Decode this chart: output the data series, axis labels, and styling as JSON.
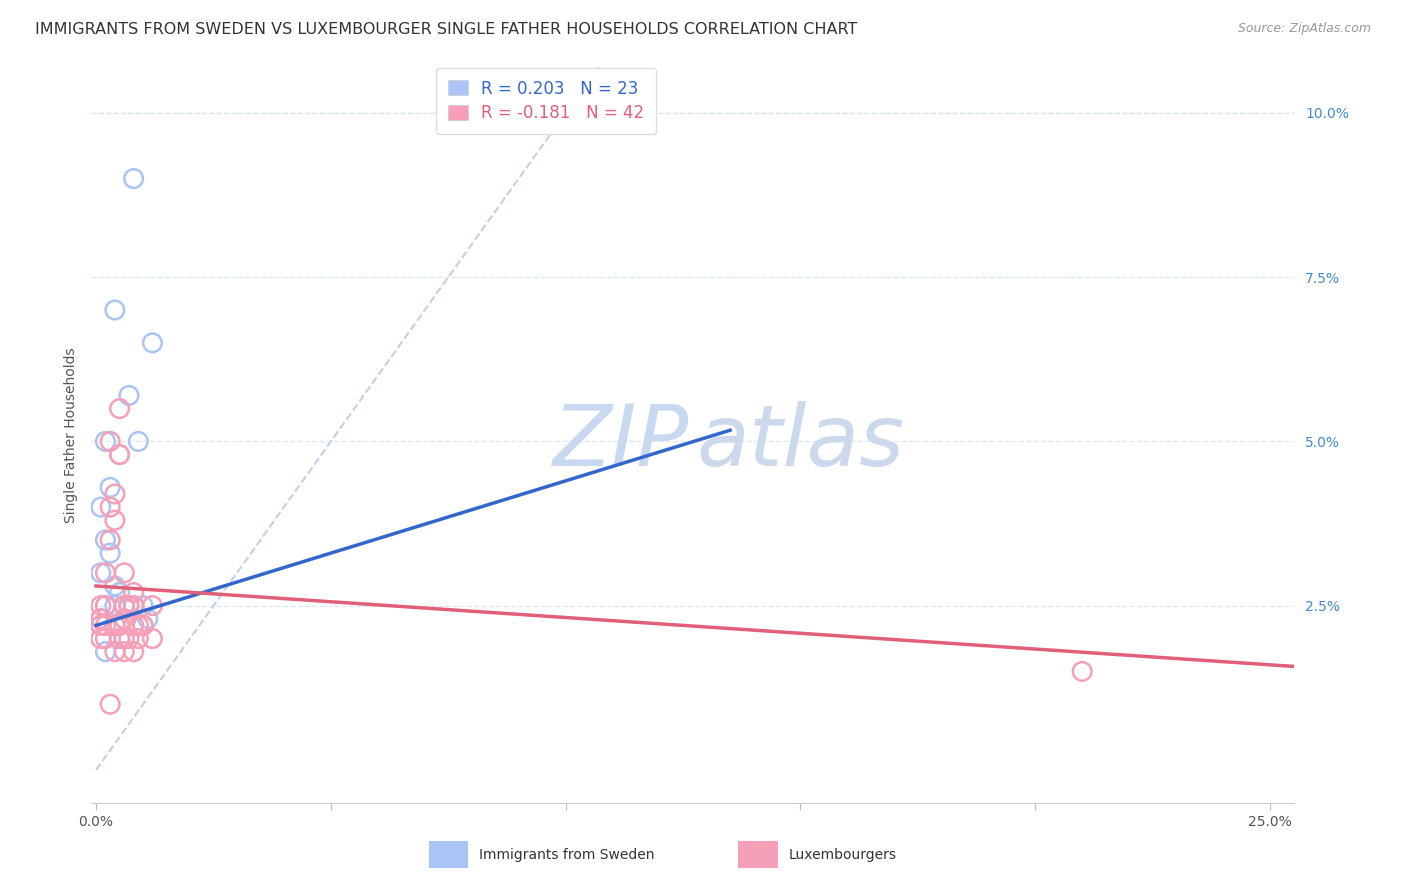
{
  "title": "IMMIGRANTS FROM SWEDEN VS LUXEMBOURGER SINGLE FATHER HOUSEHOLDS CORRELATION CHART",
  "source": "Source: ZipAtlas.com",
  "xlabel_blue": "Immigrants from Sweden",
  "xlabel_pink": "Luxembourgers",
  "ylabel": "Single Father Households",
  "xlim": [
    -0.001,
    0.255
  ],
  "ylim": [
    -0.005,
    0.107
  ],
  "xtick_positions": [
    0.0,
    0.05,
    0.1,
    0.15,
    0.2,
    0.25
  ],
  "xtick_labels": [
    "0.0%",
    "",
    "",
    "",
    "",
    "25.0%"
  ],
  "ytick_right_positions": [
    0.025,
    0.05,
    0.075,
    0.1
  ],
  "ytick_right_labels": [
    "2.5%",
    "5.0%",
    "7.5%",
    "10.0%"
  ],
  "blue_R": 0.203,
  "blue_N": 23,
  "pink_R": -0.181,
  "pink_N": 42,
  "blue_color": "#aac4f5",
  "pink_color": "#f5a0b8",
  "blue_line_color": "#3366cc",
  "pink_line_color": "#e0607a",
  "diag_line_color": "#c0d0e8",
  "grid_color": "#dde8f2",
  "background_color": "#ffffff",
  "blue_scatter_x": [
    0.008,
    0.012,
    0.004,
    0.007,
    0.009,
    0.002,
    0.005,
    0.003,
    0.001,
    0.002,
    0.003,
    0.001,
    0.004,
    0.005,
    0.002,
    0.006,
    0.008,
    0.001,
    0.011,
    0.002,
    0.01,
    0.001,
    0.004
  ],
  "blue_scatter_y": [
    0.09,
    0.065,
    0.07,
    0.057,
    0.05,
    0.05,
    0.048,
    0.043,
    0.04,
    0.035,
    0.033,
    0.03,
    0.028,
    0.027,
    0.025,
    0.025,
    0.025,
    0.023,
    0.023,
    0.018,
    0.025,
    0.022,
    0.025
  ],
  "pink_scatter_x": [
    0.001,
    0.002,
    0.001,
    0.003,
    0.001,
    0.002,
    0.003,
    0.004,
    0.005,
    0.005,
    0.003,
    0.004,
    0.006,
    0.007,
    0.004,
    0.008,
    0.006,
    0.007,
    0.005,
    0.006,
    0.009,
    0.01,
    0.012,
    0.008,
    0.006,
    0.008,
    0.004,
    0.005,
    0.01,
    0.008,
    0.009,
    0.007,
    0.006,
    0.005,
    0.004,
    0.002,
    0.002,
    0.001,
    0.21,
    0.003,
    0.006,
    0.012
  ],
  "pink_scatter_y": [
    0.025,
    0.03,
    0.022,
    0.035,
    0.023,
    0.025,
    0.05,
    0.042,
    0.048,
    0.055,
    0.04,
    0.038,
    0.03,
    0.025,
    0.022,
    0.027,
    0.02,
    0.025,
    0.022,
    0.023,
    0.02,
    0.022,
    0.02,
    0.025,
    0.025,
    0.022,
    0.018,
    0.02,
    0.022,
    0.018,
    0.022,
    0.02,
    0.018,
    0.022,
    0.022,
    0.02,
    0.022,
    0.02,
    0.015,
    0.01,
    0.023,
    0.025
  ],
  "title_fontsize": 11.5,
  "source_fontsize": 9,
  "label_fontsize": 10,
  "tick_fontsize": 10,
  "legend_fontsize": 12,
  "watermark_zip_color": "#c8d8f0",
  "watermark_atlas_color": "#ccd8ec",
  "watermark_fontsize": 62,
  "blue_line_x_end": 0.135,
  "pink_line_x_start": 0.0,
  "pink_line_x_end": 0.255,
  "blue_line_intercept": 0.022,
  "blue_line_slope": 0.22,
  "pink_line_intercept": 0.028,
  "pink_line_slope": -0.048
}
